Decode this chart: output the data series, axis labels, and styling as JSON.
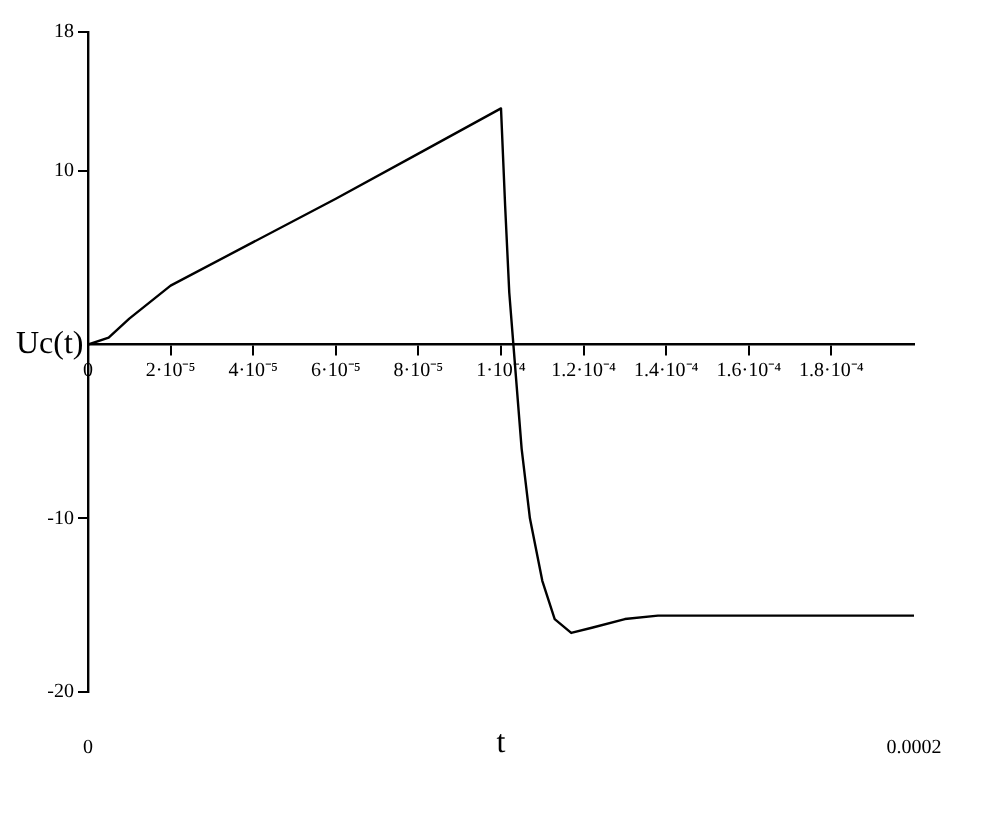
{
  "chart_data": {
    "type": "line",
    "xlabel": "t",
    "ylabel": "Uc(t)",
    "x": [
      0,
      5e-06,
      1e-05,
      2e-05,
      4e-05,
      6e-05,
      8e-05,
      0.0001,
      0.000101,
      0.000102,
      0.000103,
      0.000105,
      0.000107,
      0.00011,
      0.000113,
      0.000117,
      0.000122,
      0.00013,
      0.000138,
      0.0002
    ],
    "series": [
      {
        "color": "#000000",
        "values": [
          0,
          0.4,
          1.5,
          3.4,
          5.9,
          8.4,
          11.0,
          13.6,
          8,
          3,
          0,
          -6,
          -10,
          -13.6,
          -15.8,
          -16.6,
          -16.3,
          -15.8,
          -15.6,
          -15.6
        ]
      }
    ],
    "xlim": [
      0,
      0.0002
    ],
    "xticks": [
      0,
      {
        "value": 2e-05,
        "label": "2·10⁻⁵"
      },
      {
        "value": 4e-05,
        "label": "4·10⁻⁵"
      },
      {
        "value": 6e-05,
        "label": "6·10⁻⁵"
      },
      {
        "value": 8e-05,
        "label": "8·10⁻⁵"
      },
      {
        "value": 0.0001,
        "label": "1·10⁻⁴"
      },
      {
        "value": 0.00012,
        "label": "1.2·10⁻⁴"
      },
      {
        "value": 0.00014,
        "label": "1.4·10⁻⁴"
      },
      {
        "value": 0.00016,
        "label": "1.6·10⁻⁴"
      },
      {
        "value": 0.00018,
        "label": "1.8·10⁻⁴"
      }
    ],
    "x2lim": [
      0,
      0.0002
    ],
    "x2ticks": [
      0,
      0.0002
    ],
    "ylim": [
      -20,
      18
    ],
    "yticks": [
      -20,
      -10,
      10,
      18
    ],
    "grid": false,
    "legend": false,
    "marker": "none",
    "line_style": "solid"
  }
}
